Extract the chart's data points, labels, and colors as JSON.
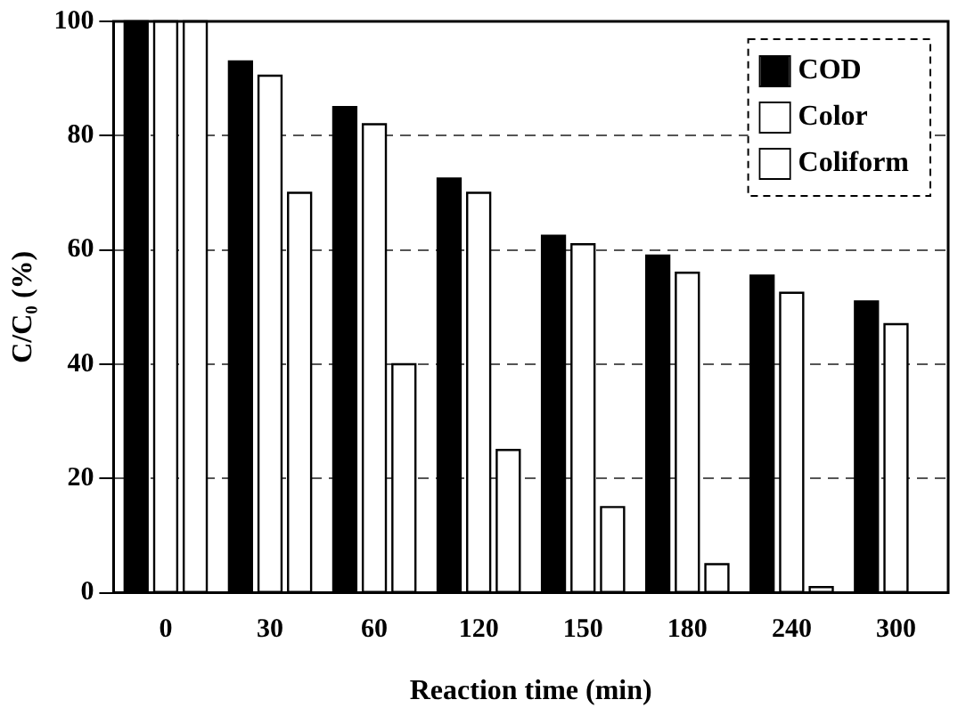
{
  "chart_data": {
    "type": "bar",
    "xlabel": "Reaction time (min)",
    "ylabel": "C/C₀ (%)",
    "categories": [
      "0",
      "30",
      "60",
      "120",
      "150",
      "180",
      "240",
      "300"
    ],
    "series": [
      {
        "name": "COD",
        "color": "#000000",
        "values": [
          100,
          93,
          85,
          72.5,
          62.5,
          59,
          55.5,
          51
        ]
      },
      {
        "name": "Color",
        "color": "#ffffff",
        "values": [
          100,
          90.5,
          82,
          70,
          61,
          56,
          52.5,
          47
        ]
      },
      {
        "name": "Coliform",
        "color": "#ffffff",
        "values": [
          100,
          70,
          40,
          25,
          15,
          5,
          1,
          0
        ]
      }
    ],
    "ylim": [
      0,
      100
    ],
    "yticks": [
      0,
      20,
      40,
      60,
      80,
      100
    ],
    "grid": "y",
    "legend": "top right"
  }
}
